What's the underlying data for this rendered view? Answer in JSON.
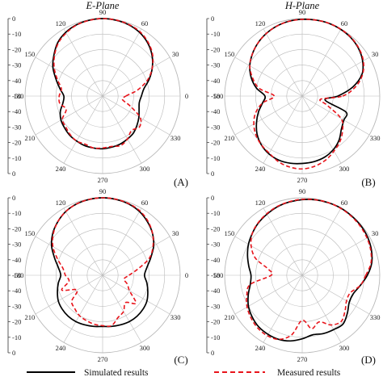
{
  "titles": {
    "left": "E-Plane",
    "right": "H-Plane"
  },
  "legend": {
    "simulated": "Simulated results",
    "measured": "Measured results"
  },
  "colors": {
    "simulated": "#000000",
    "measured": "#e8141b",
    "grid": "#b9b9b9"
  },
  "chart_data": [
    {
      "type": "polar-line",
      "panel": "(A)",
      "radial_ticks": [
        "0",
        "-10",
        "-20",
        "-30",
        "-40",
        "-50",
        "-40",
        "-30",
        "-20",
        "-10",
        "0"
      ],
      "radial_range_db": [
        -50,
        0
      ],
      "angle_ticks_deg": [
        90,
        60,
        30,
        0,
        330,
        300,
        270,
        240,
        210,
        180,
        150,
        120
      ],
      "series": [
        {
          "name": "Simulated results",
          "angles_deg": [
            0,
            10,
            20,
            30,
            40,
            50,
            60,
            70,
            80,
            90,
            100,
            110,
            120,
            130,
            140,
            150,
            160,
            170,
            180,
            190,
            200,
            210,
            220,
            230,
            240,
            250,
            260,
            270,
            280,
            290,
            300,
            310,
            320,
            330,
            340,
            350
          ],
          "values_db": [
            -25,
            -23,
            -18,
            -13,
            -8.5,
            -5,
            -2.5,
            -1,
            -0.3,
            0,
            -0.3,
            -1,
            -2.5,
            -5,
            -9,
            -13,
            -18,
            -22,
            -25,
            -24,
            -21,
            -19,
            -18,
            -17,
            -16.5,
            -16,
            -16,
            -16,
            -16.5,
            -17,
            -18,
            -19,
            -21,
            -23,
            -25,
            -26
          ]
        },
        {
          "name": "Measured results",
          "angles_deg": [
            0,
            10,
            20,
            30,
            40,
            50,
            60,
            70,
            80,
            90,
            100,
            110,
            120,
            130,
            140,
            150,
            160,
            170,
            180,
            190,
            200,
            210,
            220,
            230,
            240,
            250,
            260,
            270,
            280,
            290,
            300,
            310,
            320,
            330,
            340,
            350
          ],
          "values_db": [
            -35,
            -27,
            -19,
            -13,
            -8,
            -4.5,
            -2,
            -0.8,
            -0.2,
            0,
            -0.4,
            -1.2,
            -3,
            -5.5,
            -9.5,
            -14,
            -19,
            -23,
            -22,
            -22,
            -25,
            -20,
            -19,
            -17.5,
            -16.5,
            -17,
            -16,
            -16.5,
            -17,
            -16,
            -18,
            -21,
            -19,
            -22,
            -31,
            -37
          ]
        }
      ]
    },
    {
      "type": "polar-line",
      "panel": "(B)",
      "radial_ticks": [
        "0",
        "-10",
        "-20",
        "-30",
        "-40",
        "-50",
        "-40",
        "-30",
        "-20",
        "-10",
        "0"
      ],
      "radial_range_db": [
        -50,
        0
      ],
      "angle_ticks_deg": [
        90,
        60,
        30,
        0,
        330,
        300,
        270,
        240,
        210,
        180,
        150,
        120
      ],
      "series": [
        {
          "name": "Simulated results",
          "angles_deg": [
            0,
            10,
            20,
            30,
            40,
            50,
            60,
            70,
            80,
            90,
            100,
            110,
            120,
            130,
            140,
            150,
            160,
            170,
            180,
            190,
            200,
            210,
            220,
            230,
            240,
            250,
            260,
            270,
            280,
            290,
            300,
            310,
            320,
            330,
            340,
            350
          ],
          "values_db": [
            -27,
            -17,
            -9,
            -5,
            -2.5,
            -1,
            -0.3,
            0,
            -0.2,
            -0.5,
            -1,
            -2,
            -3.5,
            -5.5,
            -8,
            -11,
            -15,
            -20,
            -26,
            -24,
            -20,
            -16,
            -12,
            -9,
            -7,
            -6,
            -6,
            -6.5,
            -7,
            -8,
            -10,
            -13,
            -17,
            -19,
            -20,
            -35
          ]
        },
        {
          "name": "Measured results",
          "angles_deg": [
            0,
            10,
            20,
            30,
            40,
            50,
            60,
            70,
            80,
            90,
            100,
            110,
            120,
            130,
            140,
            150,
            160,
            170,
            180,
            190,
            200,
            210,
            220,
            230,
            240,
            250,
            260,
            270,
            280,
            290,
            300,
            310,
            320,
            330,
            340,
            350
          ],
          "values_db": [
            -24,
            -15,
            -8.5,
            -4.5,
            -2.2,
            -0.8,
            -0.2,
            0,
            -0.2,
            -0.5,
            -1,
            -2,
            -3.5,
            -5.5,
            -8,
            -11,
            -16,
            -22,
            -32,
            -24,
            -18,
            -14,
            -11,
            -9,
            -7.5,
            -5,
            -3.5,
            -3,
            -4,
            -6,
            -9,
            -12,
            -16,
            -21,
            -33,
            -38
          ]
        }
      ]
    },
    {
      "type": "polar-line",
      "panel": "(C)",
      "radial_ticks": [
        "0",
        "-10",
        "-20",
        "-30",
        "-40",
        "-50",
        "-40",
        "-30",
        "-20",
        "-10",
        "0"
      ],
      "radial_range_db": [
        -50,
        0
      ],
      "angle_ticks_deg": [
        90,
        60,
        30,
        0,
        330,
        300,
        270,
        240,
        210,
        180,
        150,
        120
      ],
      "series": [
        {
          "name": "Simulated results",
          "angles_deg": [
            0,
            10,
            20,
            30,
            40,
            50,
            60,
            70,
            80,
            90,
            100,
            110,
            120,
            130,
            140,
            150,
            160,
            170,
            180,
            190,
            200,
            210,
            220,
            230,
            240,
            250,
            260,
            270,
            280,
            290,
            300,
            310,
            320,
            330,
            340,
            350
          ],
          "values_db": [
            -23,
            -21,
            -17,
            -12,
            -8,
            -5,
            -2.5,
            -1,
            -0.3,
            0,
            -0.3,
            -1,
            -2.5,
            -5,
            -8,
            -12,
            -17,
            -21,
            -23,
            -21,
            -19,
            -17,
            -16,
            -15.5,
            -15.5,
            -16,
            -16.5,
            -17,
            -16.5,
            -16,
            -15.5,
            -15.5,
            -16,
            -17,
            -19,
            -21
          ]
        },
        {
          "name": "Measured results",
          "angles_deg": [
            0,
            10,
            20,
            30,
            40,
            50,
            60,
            70,
            80,
            90,
            100,
            110,
            120,
            130,
            140,
            150,
            160,
            170,
            180,
            190,
            200,
            210,
            220,
            230,
            240,
            250,
            260,
            270,
            280,
            290,
            300,
            310,
            320,
            330,
            340,
            350
          ],
          "values_db": [
            -33,
            -27,
            -18,
            -12.5,
            -8,
            -4.5,
            -2,
            -0.8,
            -0.2,
            0,
            -0.3,
            -1,
            -2.5,
            -5,
            -8.5,
            -13,
            -19,
            -24,
            -26,
            -28,
            -22,
            -31,
            -24,
            -22,
            -20,
            -19,
            -18,
            -17.5,
            -17,
            -21,
            -23,
            -27,
            -22,
            -30,
            -33,
            -36
          ]
        }
      ]
    },
    {
      "type": "polar-line",
      "panel": "(D)",
      "radial_ticks": [
        "0",
        "-10",
        "-20",
        "-30",
        "-40",
        "-50",
        "-40",
        "-30",
        "-20",
        "-10",
        "0"
      ],
      "radial_range_db": [
        -50,
        0
      ],
      "angle_ticks_deg": [
        90,
        60,
        30,
        0,
        330,
        300,
        270,
        240,
        210,
        180,
        150,
        120
      ],
      "series": [
        {
          "name": "Simulated results",
          "angles_deg": [
            0,
            10,
            20,
            30,
            40,
            50,
            60,
            70,
            80,
            90,
            100,
            110,
            120,
            130,
            140,
            150,
            160,
            170,
            180,
            190,
            200,
            210,
            220,
            230,
            240,
            250,
            260,
            270,
            280,
            290,
            300,
            310,
            320,
            330,
            340,
            350
          ],
          "values_db": [
            -8,
            -4.5,
            -2.5,
            -1.2,
            -0.5,
            -0.2,
            0,
            -0.2,
            -0.6,
            -1.2,
            -2,
            -3,
            -4.5,
            -6,
            -8,
            -10,
            -12.5,
            -15,
            -17,
            -16,
            -13,
            -10,
            -8,
            -6.5,
            -6,
            -6,
            -7,
            -9,
            -11,
            -10,
            -9.5,
            -9,
            -12,
            -15,
            -15,
            -12
          ]
        },
        {
          "name": "Measured results",
          "angles_deg": [
            0,
            10,
            20,
            30,
            40,
            50,
            60,
            70,
            80,
            90,
            100,
            110,
            120,
            130,
            140,
            150,
            160,
            170,
            180,
            190,
            200,
            210,
            220,
            230,
            240,
            250,
            260,
            270,
            280,
            290,
            300,
            310,
            320,
            330,
            340,
            350
          ],
          "values_db": [
            -9,
            -5,
            -3,
            -1.8,
            -1,
            -0.5,
            -0.2,
            -0.2,
            -0.5,
            -1,
            -1.8,
            -2.8,
            -4.2,
            -5.8,
            -8,
            -12,
            -18,
            -28,
            -30,
            -16,
            -12,
            -9,
            -7,
            -5.5,
            -5,
            -6,
            -11,
            -21,
            -15,
            -18,
            -13,
            -11,
            -14,
            -17,
            -17,
            -12
          ]
        }
      ]
    }
  ]
}
